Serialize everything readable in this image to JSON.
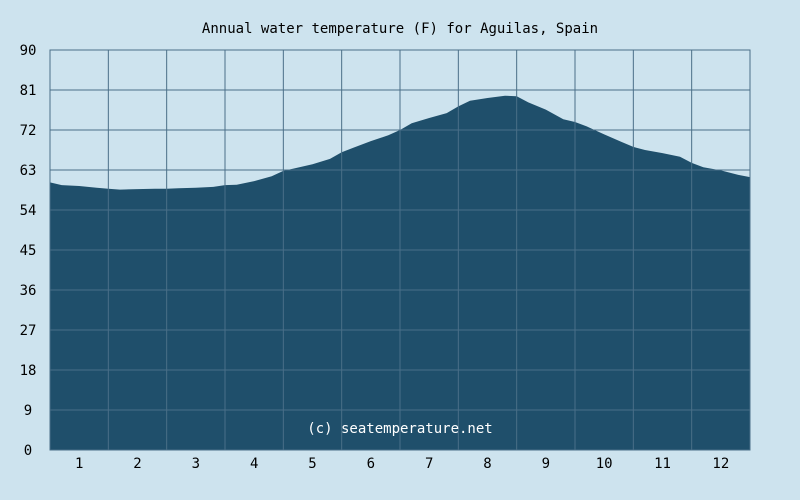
{
  "chart_data": {
    "type": "area",
    "title": "Annual water temperature (F) for Aguilas, Spain",
    "watermark": "(c) seatemperature.net",
    "xlabel": "",
    "ylabel": "",
    "x_ticks": [
      "1",
      "2",
      "3",
      "4",
      "5",
      "6",
      "7",
      "8",
      "9",
      "10",
      "11",
      "12"
    ],
    "y_ticks": [
      "0",
      "9",
      "18",
      "27",
      "36",
      "45",
      "54",
      "63",
      "72",
      "81",
      "90"
    ],
    "xlim": [
      0.5,
      12.5
    ],
    "ylim": [
      0,
      90
    ],
    "grid": true,
    "colors": {
      "background": "#cde3ee",
      "plot_background": "#cde3ee",
      "area_fill": "#1f4f6b",
      "grid": "#4a6f88"
    },
    "series": [
      {
        "x": [
          0.5,
          0.7,
          1.0,
          1.3,
          1.5,
          1.7,
          2.0,
          2.3,
          2.5,
          2.7,
          3.0,
          3.3,
          3.5,
          3.7,
          4.0,
          4.3,
          4.5,
          4.7,
          5.0,
          5.3,
          5.5,
          5.7,
          6.0,
          6.3,
          6.5,
          6.7,
          7.0,
          7.3,
          7.5,
          7.7,
          8.0,
          8.3,
          8.5,
          8.7,
          9.0,
          9.3,
          9.5,
          9.7,
          10.0,
          10.3,
          10.5,
          10.7,
          11.0,
          11.3,
          11.5,
          11.7,
          12.0,
          12.3,
          12.5
        ],
        "y": [
          60.2,
          59.6,
          59.4,
          59.0,
          58.8,
          58.6,
          58.7,
          58.8,
          58.8,
          58.9,
          59.0,
          59.2,
          59.6,
          59.7,
          60.5,
          61.6,
          62.8,
          63.4,
          64.3,
          65.5,
          67.0,
          68.0,
          69.5,
          70.8,
          72.0,
          73.5,
          74.7,
          75.8,
          77.3,
          78.6,
          79.2,
          79.7,
          79.6,
          78.2,
          76.6,
          74.4,
          73.8,
          72.8,
          71.0,
          69.3,
          68.2,
          67.5,
          66.8,
          66.0,
          64.6,
          63.6,
          62.9,
          61.9,
          61.4
        ]
      }
    ]
  }
}
